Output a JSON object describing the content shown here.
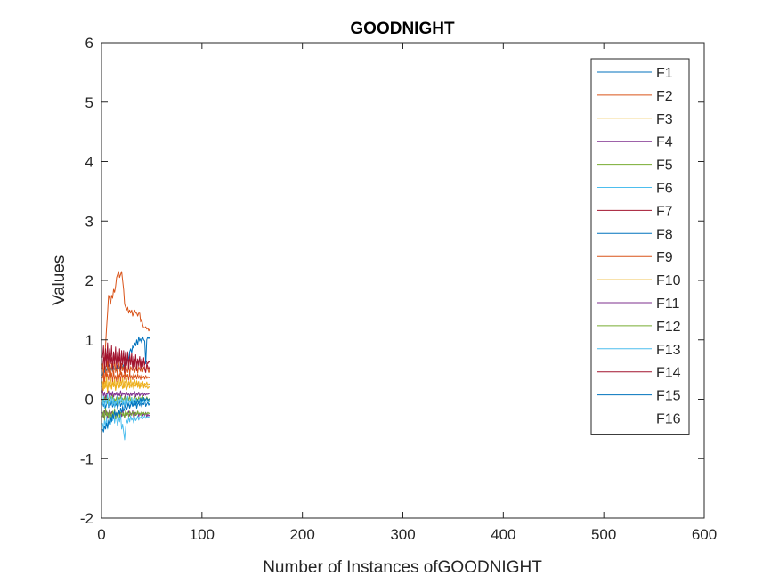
{
  "chart_data": {
    "type": "line",
    "title": "GOODNIGHT",
    "xlabel": "Number of Instances ofGOODNIGHT",
    "ylabel": "Values",
    "xlim": [
      0,
      600
    ],
    "ylim": [
      -2,
      6
    ],
    "xticks": [
      0,
      100,
      200,
      300,
      400,
      500,
      600
    ],
    "xtick_labels": [
      "0",
      "100",
      "200",
      "300",
      "400",
      "500",
      "600"
    ],
    "yticks": [
      -2,
      -1,
      0,
      1,
      2,
      3,
      4,
      5,
      6
    ],
    "ytick_labels": [
      "-2",
      "-1",
      "0",
      "1",
      "2",
      "3",
      "4",
      "5",
      "6"
    ],
    "grid": false,
    "legend_position": "top-right",
    "x": [
      1,
      2,
      3,
      4,
      5,
      6,
      7,
      8,
      9,
      10,
      11,
      12,
      13,
      14,
      15,
      16,
      17,
      18,
      19,
      20,
      21,
      22,
      23,
      24,
      25,
      26,
      27,
      28,
      29,
      30,
      31,
      32,
      33,
      34,
      35,
      36,
      37,
      38,
      39,
      40,
      41,
      42,
      43,
      44,
      45,
      46,
      47,
      48
    ],
    "series": [
      {
        "name": "F1",
        "color": "#0072BD",
        "values": [
          -0.06,
          -0.12,
          -0.03,
          -0.15,
          -0.08,
          -0.02,
          -0.14,
          -0.07,
          -0.1,
          -0.04,
          -0.13,
          -0.09,
          -0.01,
          -0.11,
          -0.06,
          -0.16,
          -0.08,
          -0.03,
          -0.12,
          -0.07,
          -0.1,
          -0.05,
          -0.14,
          -0.08,
          -0.02,
          -0.11,
          -0.06,
          -0.13,
          -0.09,
          -0.04,
          -0.12,
          -0.07,
          -0.1,
          -0.03,
          -0.15,
          -0.08,
          -0.06,
          -0.11,
          -0.04,
          -0.13,
          -0.07,
          -0.09,
          -0.02,
          -0.12,
          -0.08,
          -0.05,
          -0.1,
          -0.07
        ]
      },
      {
        "name": "F2",
        "color": "#D95319",
        "values": [
          0.1,
          0.3,
          0.6,
          0.9,
          1.2,
          1.45,
          1.75,
          1.7,
          1.6,
          1.75,
          1.7,
          1.85,
          1.8,
          1.9,
          2.05,
          2.1,
          2.15,
          2.05,
          2.1,
          2.15,
          2.0,
          1.85,
          1.6,
          1.55,
          1.5,
          1.55,
          1.45,
          1.5,
          1.45,
          1.5,
          1.4,
          1.45,
          1.5,
          1.45,
          1.45,
          1.4,
          1.45,
          1.45,
          1.3,
          1.35,
          1.25,
          1.2,
          1.2,
          1.22,
          1.18,
          1.2,
          1.15,
          1.18
        ]
      },
      {
        "name": "F3",
        "color": "#EDB120",
        "values": [
          0.2,
          0.25,
          0.18,
          0.3,
          0.22,
          0.15,
          0.28,
          0.2,
          0.24,
          0.17,
          0.29,
          0.21,
          0.26,
          0.16,
          0.23,
          0.3,
          0.19,
          0.25,
          0.22,
          0.27,
          0.18,
          0.24,
          0.2,
          0.28,
          0.16,
          0.23,
          0.26,
          0.19,
          0.25,
          0.21,
          0.29,
          0.17,
          0.24,
          0.22,
          0.27,
          0.2,
          0.25,
          0.18,
          0.23,
          0.21,
          0.26,
          0.19,
          0.24,
          0.2,
          0.22,
          0.18,
          0.21,
          0.2
        ]
      },
      {
        "name": "F4",
        "color": "#7E2F8E",
        "values": [
          -0.22,
          -0.3,
          -0.18,
          -0.26,
          -0.2,
          -0.32,
          -0.24,
          -0.17,
          -0.28,
          -0.21,
          -0.25,
          -0.33,
          -0.19,
          -0.27,
          -0.23,
          -0.3,
          -0.2,
          -0.26,
          -0.22,
          -0.29,
          -0.18,
          -0.25,
          -0.31,
          -0.21,
          -0.27,
          -0.24,
          -0.2,
          -0.28,
          -0.23,
          -0.26,
          -0.19,
          -0.3,
          -0.22,
          -0.27,
          -0.25,
          -0.2,
          -0.29,
          -0.23,
          -0.26,
          -0.21,
          -0.28,
          -0.24,
          -0.27,
          -0.22,
          -0.3,
          -0.25,
          -0.28,
          -0.26
        ]
      },
      {
        "name": "F5",
        "color": "#77AC30",
        "values": [
          0.0,
          -0.05,
          0.04,
          -0.03,
          0.06,
          -0.07,
          0.02,
          -0.04,
          0.05,
          -0.02,
          0.07,
          -0.06,
          0.01,
          -0.03,
          0.04,
          -0.08,
          0.03,
          -0.01,
          0.06,
          -0.05,
          0.02,
          -0.03,
          0.05,
          -0.06,
          0.0,
          0.04,
          -0.02,
          0.06,
          -0.04,
          0.03,
          -0.07,
          0.01,
          0.05,
          -0.03,
          0.02,
          -0.05,
          0.04,
          -0.01,
          0.03,
          -0.04,
          0.06,
          -0.02,
          0.01,
          -0.03,
          0.04,
          0.0,
          -0.02,
          0.02
        ]
      },
      {
        "name": "F6",
        "color": "#4DBEEE",
        "values": [
          -0.4,
          -0.5,
          -0.35,
          -0.45,
          -0.3,
          -0.5,
          -0.38,
          -0.25,
          -0.42,
          -0.3,
          -0.36,
          -0.22,
          -0.4,
          -0.28,
          -0.33,
          -0.45,
          -0.3,
          -0.38,
          -0.25,
          -0.5,
          -0.42,
          -0.55,
          -0.68,
          -0.48,
          -0.35,
          -0.4,
          -0.3,
          -0.38,
          -0.28,
          -0.35,
          -0.32,
          -0.4,
          -0.3,
          -0.36,
          -0.33,
          -0.28,
          -0.35,
          -0.3,
          -0.32,
          -0.27,
          -0.33,
          -0.3,
          -0.28,
          -0.32,
          -0.3,
          -0.29,
          -0.31,
          -0.3
        ]
      },
      {
        "name": "F7",
        "color": "#A2142F",
        "values": [
          0.5,
          0.7,
          0.6,
          0.8,
          0.55,
          0.75,
          0.65,
          0.85,
          0.6,
          0.7,
          0.5,
          0.8,
          0.65,
          0.72,
          0.58,
          0.78,
          0.62,
          0.7,
          0.55,
          0.82,
          0.6,
          0.74,
          0.66,
          0.8,
          0.57,
          0.7,
          0.63,
          0.76,
          0.6,
          0.68,
          0.55,
          0.72,
          0.64,
          0.7,
          0.58,
          0.66,
          0.62,
          0.7,
          0.55,
          0.68,
          0.6,
          0.65,
          0.58,
          0.66,
          0.62,
          0.6,
          0.64,
          0.62
        ]
      },
      {
        "name": "F8",
        "color": "#0072BD",
        "values": [
          0.4,
          0.5,
          0.45,
          0.55,
          0.48,
          0.52,
          0.46,
          0.58,
          0.5,
          0.54,
          0.47,
          0.56,
          0.5,
          0.53,
          0.48,
          0.57,
          0.51,
          0.55,
          0.49,
          0.6,
          0.52,
          0.58,
          0.55,
          0.65,
          0.6,
          0.72,
          0.68,
          0.8,
          0.85,
          0.78,
          0.9,
          0.86,
          0.95,
          0.9,
          1.0,
          0.92,
          1.05,
          0.98,
          1.02,
          0.95,
          1.05,
          1.0,
          0.98,
          0.6,
          1.0,
          1.05,
          1.02,
          1.05
        ]
      },
      {
        "name": "F9",
        "color": "#D95319",
        "values": [
          0.6,
          0.4,
          0.7,
          0.5,
          0.3,
          0.65,
          0.45,
          0.55,
          0.35,
          0.6,
          0.5,
          0.4,
          0.7,
          0.45,
          0.55,
          0.38,
          0.62,
          0.5,
          0.42,
          0.6,
          0.48,
          0.55,
          0.4,
          0.65,
          0.5,
          0.45,
          0.6,
          0.42,
          0.55,
          0.5,
          0.48,
          0.62,
          0.45,
          0.52,
          0.58,
          0.44,
          0.55,
          0.5,
          0.47,
          0.6,
          0.46,
          0.54,
          0.5,
          0.48,
          0.56,
          0.5,
          0.45,
          0.5
        ]
      },
      {
        "name": "F10",
        "color": "#EDB120",
        "values": [
          0.3,
          0.15,
          0.35,
          0.2,
          0.4,
          0.1,
          0.3,
          0.25,
          0.38,
          0.18,
          0.32,
          0.22,
          0.36,
          0.15,
          0.3,
          0.26,
          0.4,
          0.2,
          0.33,
          0.24,
          0.37,
          0.19,
          0.31,
          0.27,
          0.35,
          0.21,
          0.3,
          0.25,
          0.34,
          0.2,
          0.29,
          0.26,
          0.33,
          0.22,
          0.31,
          0.24,
          0.3,
          0.21,
          0.28,
          0.25,
          0.3,
          0.22,
          0.27,
          0.24,
          0.29,
          0.23,
          0.26,
          0.25
        ]
      },
      {
        "name": "F11",
        "color": "#7E2F8E",
        "values": [
          0.15,
          0.05,
          0.12,
          0.02,
          0.1,
          0.08,
          0.14,
          0.03,
          0.11,
          0.06,
          0.13,
          0.04,
          0.1,
          0.07,
          0.12,
          0.02,
          0.09,
          0.06,
          0.14,
          0.05,
          0.11,
          0.08,
          0.1,
          0.03,
          0.12,
          0.07,
          0.09,
          0.05,
          0.11,
          0.06,
          0.1,
          0.08,
          0.13,
          0.04,
          0.1,
          0.07,
          0.12,
          0.05,
          0.09,
          0.08,
          0.11,
          0.06,
          0.1,
          0.07,
          0.09,
          0.08,
          0.1,
          0.09
        ]
      },
      {
        "name": "F12",
        "color": "#77AC30",
        "values": [
          -0.3,
          -0.2,
          -0.35,
          -0.15,
          -0.28,
          -0.22,
          -0.32,
          -0.18,
          -0.25,
          -0.3,
          -0.2,
          -0.27,
          -0.16,
          -0.33,
          -0.22,
          -0.26,
          -0.19,
          -0.3,
          -0.24,
          -0.2,
          -0.28,
          -0.23,
          -0.31,
          -0.18,
          -0.26,
          -0.22,
          -0.29,
          -0.2,
          -0.25,
          -0.27,
          -0.21,
          -0.24,
          -0.28,
          -0.22,
          -0.26,
          -0.2,
          -0.25,
          -0.23,
          -0.27,
          -0.21,
          -0.24,
          -0.22,
          -0.26,
          -0.23,
          -0.25,
          -0.22,
          -0.24,
          -0.23
        ]
      },
      {
        "name": "F13",
        "color": "#4DBEEE",
        "values": [
          -0.1,
          0.05,
          -0.15,
          0.0,
          -0.08,
          0.08,
          -0.12,
          -0.02,
          -0.06,
          0.04,
          -0.1,
          0.02,
          -0.14,
          -0.03,
          -0.07,
          0.06,
          -0.11,
          0.0,
          -0.05,
          0.03,
          -0.09,
          -0.01,
          -0.13,
          0.02,
          -0.06,
          0.05,
          -0.1,
          -0.02,
          -0.07,
          0.03,
          -0.08,
          0.0,
          -0.05,
          0.02,
          -0.09,
          -0.01,
          -0.06,
          0.01,
          -0.07,
          -0.02,
          -0.05,
          0.0,
          -0.06,
          -0.01,
          -0.04,
          -0.02,
          -0.05,
          -0.03
        ]
      },
      {
        "name": "F14",
        "color": "#A2142F",
        "values": [
          0.7,
          0.9,
          0.5,
          0.85,
          0.6,
          0.95,
          0.55,
          0.8,
          0.65,
          0.9,
          0.5,
          0.75,
          0.6,
          0.88,
          0.52,
          0.8,
          0.62,
          0.85,
          0.5,
          0.78,
          0.58,
          0.82,
          0.45,
          0.75,
          0.6,
          0.8,
          0.5,
          0.72,
          0.58,
          0.78,
          0.5,
          0.7,
          0.55,
          0.75,
          0.48,
          0.68,
          0.56,
          0.72,
          0.5,
          0.66,
          0.55,
          0.7,
          0.5,
          0.45,
          0.6,
          0.55,
          0.5,
          0.55
        ]
      },
      {
        "name": "F15",
        "color": "#0072BD",
        "values": [
          -0.5,
          -0.55,
          -0.45,
          -0.5,
          -0.4,
          -0.48,
          -0.35,
          -0.42,
          -0.3,
          -0.38,
          -0.25,
          -0.32,
          -0.2,
          -0.28,
          -0.22,
          -0.3,
          -0.18,
          -0.25,
          -0.15,
          -0.22,
          -0.12,
          -0.2,
          -0.15,
          -0.1,
          -0.18,
          -0.12,
          -0.08,
          -0.15,
          -0.1,
          -0.05,
          -0.12,
          -0.08,
          -0.02,
          -0.1,
          -0.06,
          0.0,
          -0.08,
          -0.04,
          0.02,
          -0.06,
          -0.02,
          0.03,
          -0.04,
          0.0,
          0.02,
          -0.02,
          0.0,
          0.01
        ]
      },
      {
        "name": "F16",
        "color": "#D95319",
        "values": [
          0.35,
          0.45,
          0.3,
          0.5,
          0.38,
          0.42,
          0.32,
          0.48,
          0.36,
          0.44,
          0.3,
          0.46,
          0.34,
          0.4,
          0.3,
          0.47,
          0.35,
          0.43,
          0.31,
          0.45,
          0.36,
          0.41,
          0.33,
          0.46,
          0.37,
          0.42,
          0.32,
          0.44,
          0.35,
          0.4,
          0.33,
          0.43,
          0.36,
          0.41,
          0.34,
          0.42,
          0.35,
          0.4,
          0.33,
          0.41,
          0.36,
          0.39,
          0.34,
          0.4,
          0.35,
          0.38,
          0.36,
          0.37
        ]
      }
    ]
  }
}
